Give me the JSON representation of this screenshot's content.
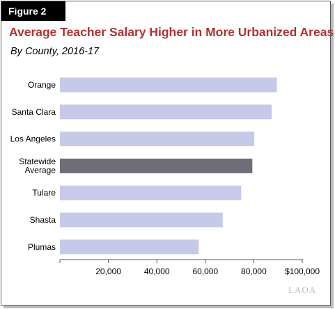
{
  "figure_label": "Figure 2",
  "logo_text": "LAOA",
  "colors": {
    "title": "#b3302e",
    "bar": "#c5cae9",
    "bar_highlight": "#6e6e78",
    "axis": "#555555"
  },
  "chart_data": {
    "type": "bar",
    "orientation": "horizontal",
    "title": "Average Teacher Salary Higher in More Urbanized Areas",
    "subtitle": "By County, 2016-17",
    "categories": [
      "Orange",
      "Santa Clara",
      "Los Angeles",
      "Statewide\nAverage",
      "Tulare",
      "Shasta",
      "Plumas"
    ],
    "values": [
      89500,
      87400,
      80200,
      79400,
      74800,
      67200,
      57300
    ],
    "highlight_index": 3,
    "xlim": [
      0,
      100000
    ],
    "x_ticks": [
      0,
      20000,
      40000,
      60000,
      80000,
      100000
    ],
    "x_tick_labels": [
      "",
      "20,000",
      "40,000",
      "60,000",
      "80,000",
      "$100,000"
    ],
    "xlabel": "",
    "ylabel": "",
    "grid": false,
    "legend": false
  }
}
